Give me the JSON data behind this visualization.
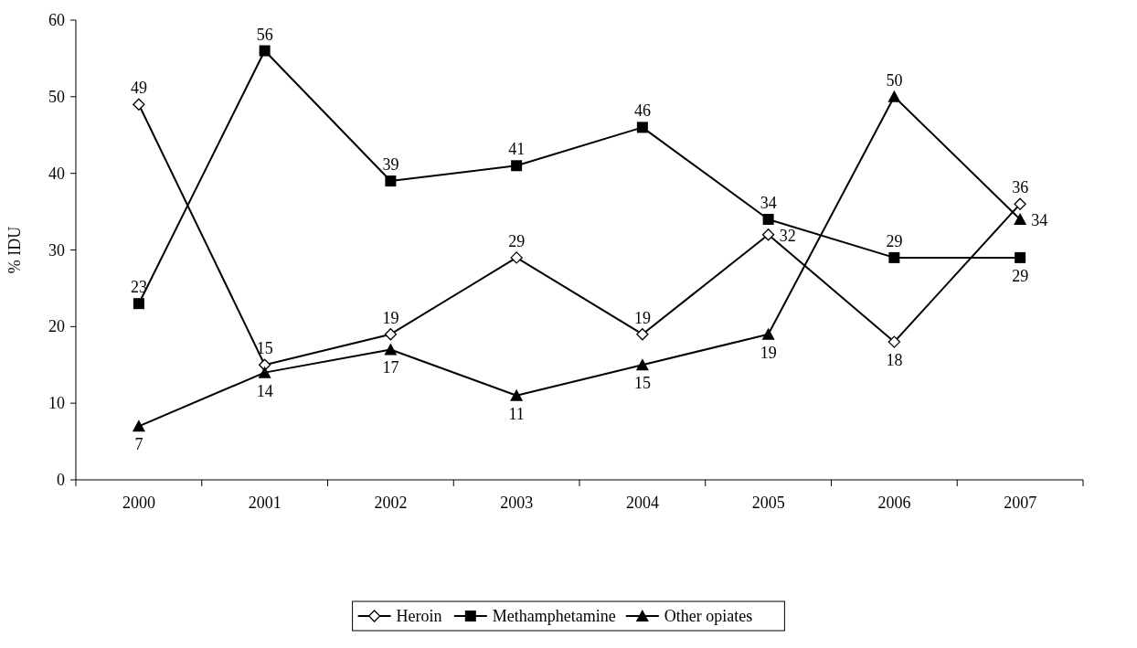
{
  "chart_data": {
    "type": "line",
    "ylabel": "% IDU",
    "categories": [
      "2000",
      "2001",
      "2002",
      "2003",
      "2004",
      "2005",
      "2006",
      "2007"
    ],
    "ylim": [
      0,
      60
    ],
    "yticks": [
      0,
      10,
      20,
      30,
      40,
      50,
      60
    ],
    "grid": false,
    "legend": "bottom",
    "data_labels": true,
    "line_style": "solid",
    "series": [
      {
        "name": "Heroin",
        "color": "#000000",
        "marker": "diamond",
        "values": [
          49,
          15,
          19,
          29,
          19,
          32,
          18,
          36
        ]
      },
      {
        "name": "Methamphetamine",
        "color": "#000000",
        "marker": "square",
        "values": [
          23,
          56,
          39,
          41,
          46,
          34,
          29,
          29
        ]
      },
      {
        "name": "Other opiates",
        "color": "#000000",
        "marker": "triangle",
        "values": [
          7,
          14,
          17,
          11,
          15,
          19,
          50,
          34
        ]
      }
    ]
  }
}
